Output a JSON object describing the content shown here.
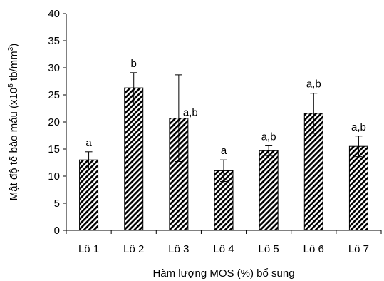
{
  "chart_data": {
    "type": "bar",
    "title": "",
    "xlabel": "Hàm lượng MOS (%) bổ sung",
    "ylabel": {
      "prefix": "Mật độ tế bào máu (x10",
      "exp": "5",
      "mid": " tb/mm",
      "exp2": "3",
      "suffix": ")"
    },
    "ylim": [
      0,
      40
    ],
    "yticks": [
      "0",
      "5",
      "10",
      "15",
      "20",
      "25",
      "30",
      "35",
      "40"
    ],
    "categories": [
      "Lô 1",
      "Lô 2",
      "Lô 3",
      "Lô 4",
      "Lô 5",
      "Lô 6",
      "Lô 7"
    ],
    "values": [
      13.0,
      26.3,
      20.7,
      11.0,
      14.7,
      21.6,
      15.5
    ],
    "error": [
      1.5,
      2.8,
      8.0,
      2.0,
      0.9,
      3.7,
      1.9
    ],
    "significance": [
      "a",
      "b",
      "a,b",
      "a",
      "a,b",
      "a,b",
      "a,b"
    ],
    "bar_fill": "diagonal-hatch",
    "grid": false,
    "colors": {
      "bar_stroke": "#000000",
      "hatch": "#000000",
      "background": "#ffffff"
    }
  }
}
